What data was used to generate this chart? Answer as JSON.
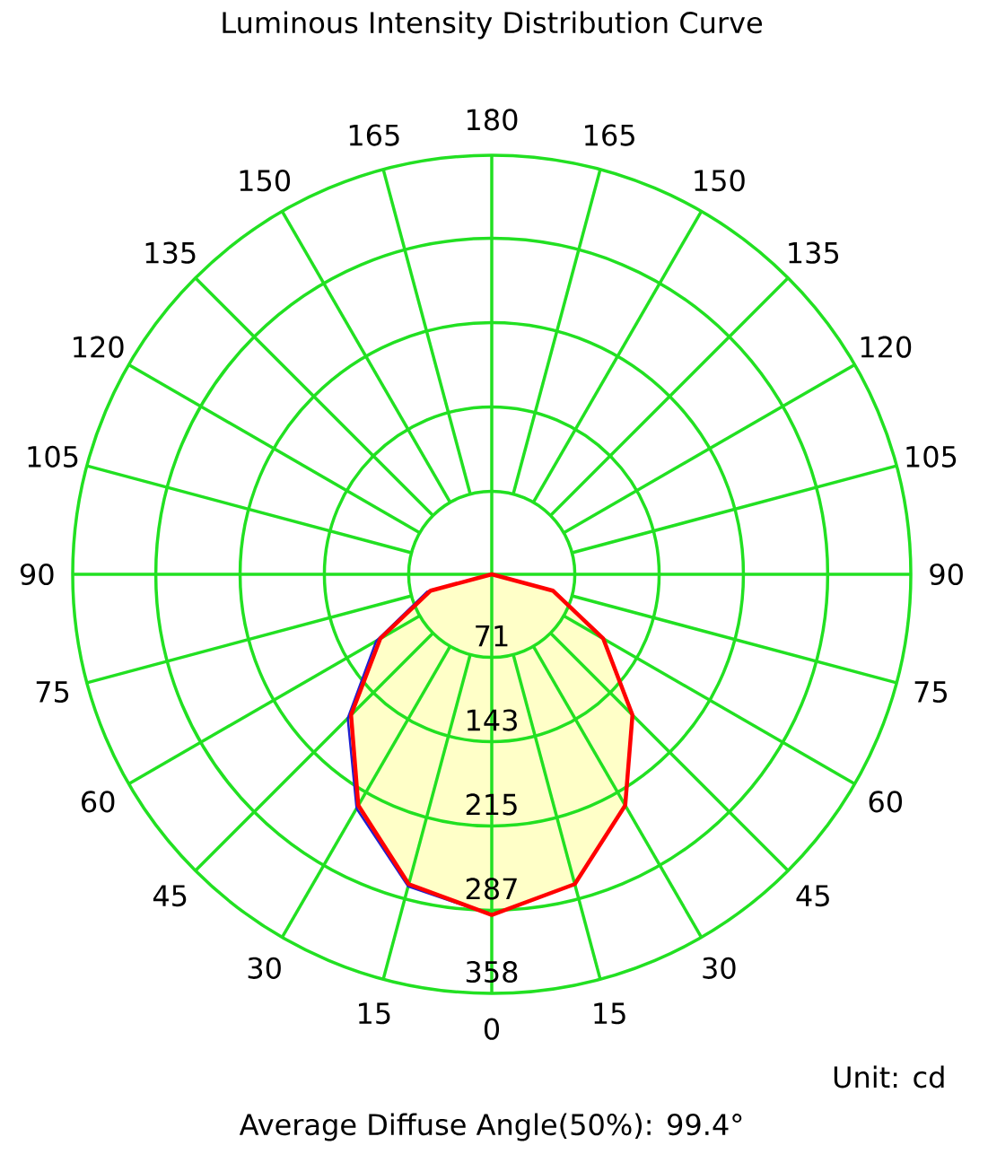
{
  "chart_data": {
    "type": "radar",
    "title": "Luminous Intensity Distribution Curve",
    "categories": [
      "180",
      "165",
      "150",
      "135",
      "120",
      "105",
      "90",
      "75",
      "60",
      "45",
      "30",
      "15",
      "0",
      "15",
      "30",
      "45",
      "60",
      "75",
      "90",
      "105",
      "120",
      "135",
      "150",
      "165"
    ],
    "ylim": [
      0,
      358
    ],
    "yticks": [
      71,
      143,
      215,
      287,
      358
    ],
    "grid": true,
    "series": [
      {
        "color": "#2020d0",
        "values": [
          0,
          0,
          0,
          0,
          0,
          0,
          0,
          54,
          110,
          170,
          228,
          274,
          291,
          276,
          231,
          174,
          114,
          57,
          0,
          0,
          0,
          0,
          0,
          0
        ]
      },
      {
        "color": "#ff0000",
        "values": [
          0,
          0,
          0,
          0,
          0,
          0,
          0,
          54,
          110,
          170,
          228,
          274,
          291,
          274,
          228,
          170,
          110,
          54,
          0,
          0,
          0,
          0,
          0,
          0
        ]
      }
    ],
    "annotations": [
      "Unit: cd",
      "Average Diffuse Angle(50%): 99.4°"
    ]
  }
}
